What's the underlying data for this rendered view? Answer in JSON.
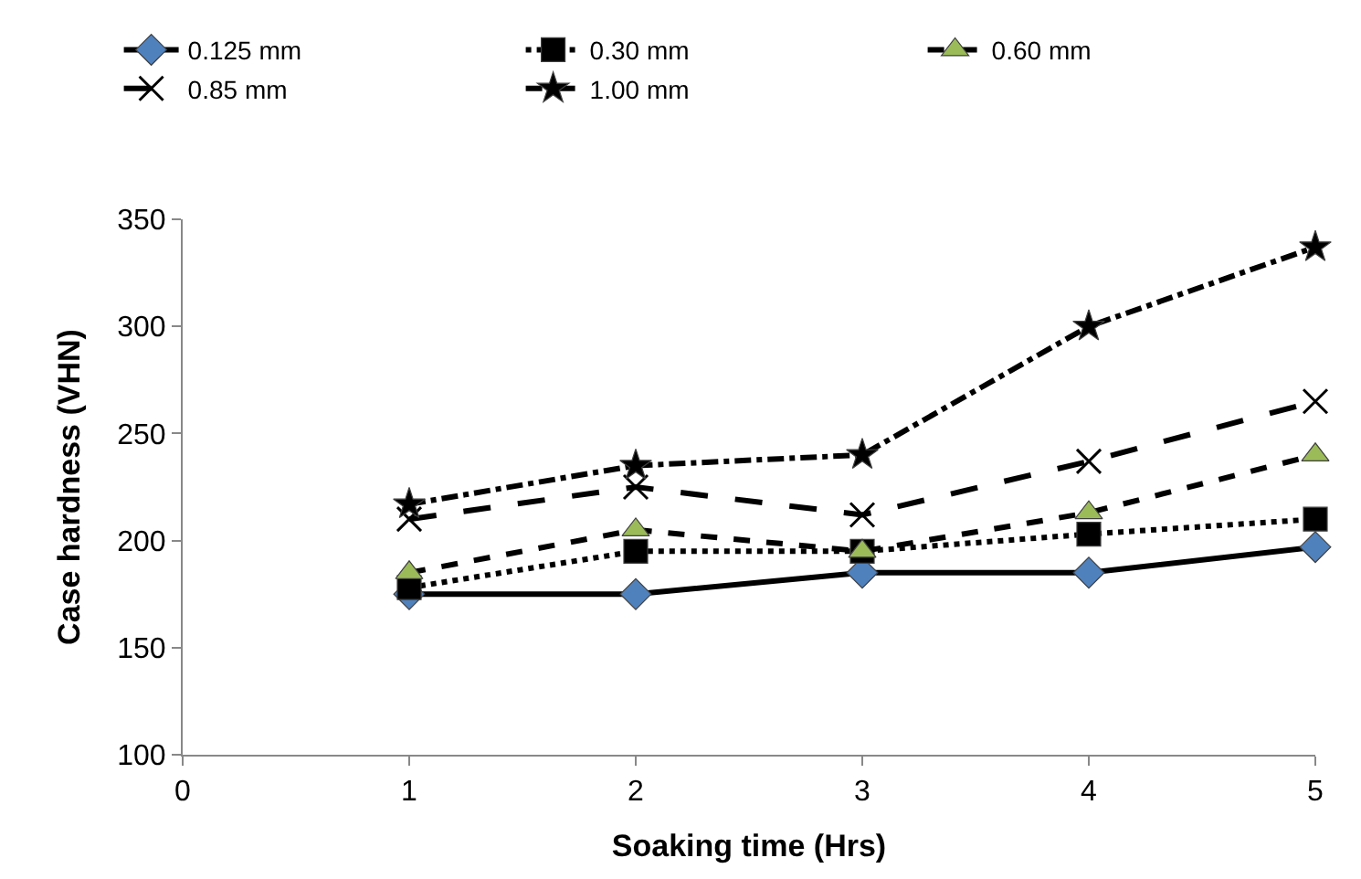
{
  "chart_data": {
    "type": "line",
    "xlabel": "Soaking time (Hrs)",
    "ylabel": "Case hardness (VHN)",
    "x": [
      1,
      2,
      3,
      4,
      5
    ],
    "series": [
      {
        "name": "0.125 mm",
        "color": "#4f81bd",
        "marker": "diamond",
        "line_style": "solid",
        "values": [
          175,
          175,
          185,
          185,
          197
        ]
      },
      {
        "name": "0.30 mm",
        "color": "#000000",
        "marker": "square",
        "line_style": "dotted",
        "values": [
          178,
          195,
          195,
          203,
          210
        ]
      },
      {
        "name": "0.60 mm",
        "color": "#9bbb59",
        "marker": "triangle",
        "line_style": "dashed",
        "values": [
          185,
          205,
          195,
          213,
          240
        ]
      },
      {
        "name": "0.85 mm",
        "color": "#000000",
        "marker": "cross",
        "line_style": "longdash",
        "values": [
          210,
          225,
          212,
          237,
          265
        ]
      },
      {
        "name": "1.00 mm",
        "color": "#000000",
        "marker": "star",
        "line_style": "dashdot",
        "values": [
          217,
          235,
          240,
          300,
          337
        ]
      }
    ],
    "xlim": [
      0,
      5
    ],
    "xticks": [
      0,
      1,
      2,
      3,
      4,
      5
    ],
    "ylim": [
      100,
      350
    ],
    "yticks": [
      100,
      150,
      200,
      250,
      300,
      350
    ],
    "legend": "top"
  }
}
